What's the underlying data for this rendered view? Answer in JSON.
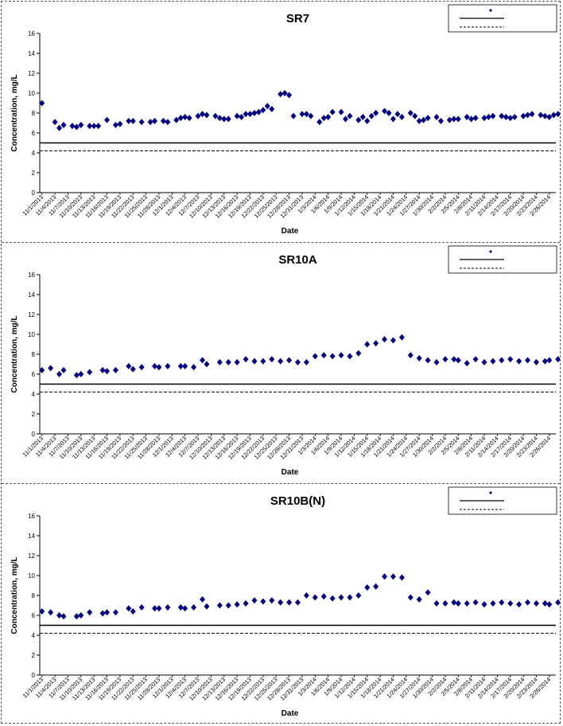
{
  "chart_data": [
    {
      "type": "scatter",
      "title": "SR7",
      "xlabel": "Date",
      "ylabel": "Concentration, mg/L",
      "ylim": [
        0,
        16
      ],
      "yticks": [
        "0",
        "2",
        "4",
        "6",
        "8",
        "10",
        "12",
        "14",
        "16"
      ],
      "x_tick_labels": [
        "11/1/2013",
        "11/4/2013",
        "11/7/2013",
        "11/10/2013",
        "11/13/2013",
        "11/16/2013",
        "11/19/2013",
        "11/22/2013",
        "11/25/2013",
        "11/28/2013",
        "12/1/2013",
        "12/4/2013",
        "12/7/2013",
        "12/10/2013",
        "12/13/2013",
        "12/16/2013",
        "12/19/2013",
        "12/22/2013",
        "12/25/2013",
        "12/28/2013",
        "12/31/2013",
        "1/3/2014",
        "1/6/2014",
        "1/9/2014",
        "1/12/2014",
        "1/15/2014",
        "1/18/2014",
        "1/21/2014",
        "1/24/2014",
        "1/27/2014",
        "1/30/2014",
        "2/2/2014",
        "2/5/2014",
        "2/8/2014",
        "2/11/2014",
        "2/14/2014",
        "2/17/2014",
        "2/20/2014",
        "2/23/2014",
        "2/26/2014"
      ],
      "grid": false,
      "legend": "top-right",
      "reference_lines": [
        {
          "style": "solid",
          "value": 5.0
        },
        {
          "style": "dashed",
          "value": 4.2
        }
      ],
      "series": [
        {
          "color": "#000080",
          "marker": "diamond",
          "x": [
            "11/1/2013",
            "11/4/2013",
            "11/5/2013",
            "11/6/2013",
            "11/8/2013",
            "11/9/2013",
            "11/10/2013",
            "11/12/2013",
            "11/13/2013",
            "11/14/2013",
            "11/16/2013",
            "11/18/2013",
            "11/19/2013",
            "11/21/2013",
            "11/22/2013",
            "11/24/2013",
            "11/26/2013",
            "11/27/2013",
            "11/29/2013",
            "11/30/2013",
            "12/2/2013",
            "12/3/2013",
            "12/4/2013",
            "12/5/2013",
            "12/7/2013",
            "12/8/2013",
            "12/9/2013",
            "12/11/2013",
            "12/12/2013",
            "12/13/2013",
            "12/14/2013",
            "12/16/2013",
            "12/17/2013",
            "12/18/2013",
            "12/19/2013",
            "12/20/2013",
            "12/21/2013",
            "12/22/2013",
            "12/23/2013",
            "12/24/2013",
            "12/26/2013",
            "12/27/2013",
            "12/28/2013",
            "12/29/2013",
            "12/31/2013",
            "1/1/2014",
            "1/2/2014",
            "1/4/2014",
            "1/5/2014",
            "1/6/2014",
            "1/7/2014",
            "1/9/2014",
            "1/10/2014",
            "1/11/2014",
            "1/13/2014",
            "1/14/2014",
            "1/15/2014",
            "1/16/2014",
            "1/17/2014",
            "1/19/2014",
            "1/20/2014",
            "1/21/2014",
            "1/22/2014",
            "1/23/2014",
            "1/25/2014",
            "1/26/2014",
            "1/27/2014",
            "1/28/2014",
            "1/29/2014",
            "1/31/2014",
            "2/1/2014",
            "2/3/2014",
            "2/4/2014",
            "2/5/2014",
            "2/7/2014",
            "2/8/2014",
            "2/9/2014",
            "2/11/2014",
            "2/12/2014",
            "2/13/2014",
            "2/15/2014",
            "2/16/2014",
            "2/17/2014",
            "2/18/2014",
            "2/20/2014",
            "2/21/2014",
            "2/22/2014",
            "2/24/2014",
            "2/25/2014",
            "2/26/2014",
            "2/27/2014",
            "2/28/2014",
            "3/1/2014",
            "3/2/2014",
            "3/3/2014"
          ],
          "y": [
            9.0,
            7.1,
            6.5,
            6.8,
            6.7,
            6.6,
            6.8,
            6.7,
            6.7,
            6.7,
            7.3,
            6.8,
            6.9,
            7.2,
            7.2,
            7.1,
            7.1,
            7.2,
            7.2,
            7.1,
            7.3,
            7.5,
            7.6,
            7.5,
            7.7,
            7.9,
            7.8,
            7.7,
            7.5,
            7.4,
            7.4,
            7.7,
            7.6,
            7.9,
            7.9,
            8.0,
            8.1,
            8.3,
            8.7,
            8.4,
            9.9,
            10.0,
            9.8,
            7.7,
            7.9,
            7.9,
            7.7,
            7.1,
            7.5,
            7.6,
            8.1,
            8.1,
            7.4,
            7.7,
            7.3,
            7.6,
            7.2,
            7.7,
            8.0,
            8.2,
            8.0,
            7.4,
            7.9,
            7.6,
            8.0,
            7.7,
            7.2,
            7.3,
            7.5,
            7.6,
            7.2,
            7.3,
            7.4,
            7.4,
            7.6,
            7.4,
            7.5,
            7.5,
            7.6,
            7.7,
            7.7,
            7.6,
            7.5,
            7.6,
            7.7,
            7.8,
            7.9,
            7.8,
            7.7,
            7.6,
            7.8,
            7.9,
            7.7,
            8.0,
            8.1
          ]
        }
      ]
    },
    {
      "type": "scatter",
      "title": "SR10A",
      "xlabel": "Date",
      "ylabel": "Concentration, mg/L",
      "ylim": [
        0,
        16
      ],
      "yticks": [
        "0",
        "2",
        "4",
        "6",
        "8",
        "10",
        "12",
        "14",
        "16"
      ],
      "x_tick_labels": [
        "11/1/2013",
        "11/4/2013",
        "11/7/2013",
        "11/10/2013",
        "11/13/2013",
        "11/16/2013",
        "11/19/2013",
        "11/22/2013",
        "11/25/2013",
        "11/28/2013",
        "12/1/2013",
        "12/4/2013",
        "12/7/2013",
        "12/10/2013",
        "12/13/2013",
        "12/16/2013",
        "12/19/2013",
        "12/22/2013",
        "12/25/2013",
        "12/28/2013",
        "12/31/2013",
        "1/3/2014",
        "1/6/2014",
        "1/9/2014",
        "1/12/2014",
        "1/15/2014",
        "1/18/2014",
        "1/21/2014",
        "1/24/2014",
        "1/27/2014",
        "1/30/2014",
        "2/2/2014",
        "2/5/2014",
        "2/8/2014",
        "2/11/2014",
        "2/14/2014",
        "2/17/2014",
        "2/20/2014",
        "2/23/2014",
        "2/26/2014"
      ],
      "grid": false,
      "legend": "top-right",
      "reference_lines": [
        {
          "style": "solid",
          "value": 5.0
        },
        {
          "style": "dashed",
          "value": 4.2
        }
      ],
      "series": [
        {
          "color": "#000080",
          "marker": "diamond",
          "x": [
            "11/1/2013",
            "11/3/2013",
            "11/5/2013",
            "11/6/2013",
            "11/9/2013",
            "11/10/2013",
            "11/12/2013",
            "11/15/2013",
            "11/16/2013",
            "11/18/2013",
            "11/21/2013",
            "11/22/2013",
            "11/24/2013",
            "11/27/2013",
            "11/28/2013",
            "11/30/2013",
            "12/3/2013",
            "12/4/2013",
            "12/6/2013",
            "12/8/2013",
            "12/9/2013",
            "12/12/2013",
            "12/14/2013",
            "12/16/2013",
            "12/18/2013",
            "12/20/2013",
            "12/22/2013",
            "12/24/2013",
            "12/26/2013",
            "12/28/2013",
            "12/30/2013",
            "1/1/2014",
            "1/3/2014",
            "1/5/2014",
            "1/7/2014",
            "1/9/2014",
            "1/11/2014",
            "1/13/2014",
            "1/15/2014",
            "1/17/2014",
            "1/19/2014",
            "1/21/2014",
            "1/23/2014",
            "1/25/2014",
            "1/27/2014",
            "1/29/2014",
            "1/31/2014",
            "2/2/2014",
            "2/4/2014",
            "2/5/2014",
            "2/7/2014",
            "2/9/2014",
            "2/11/2014",
            "2/13/2014",
            "2/15/2014",
            "2/17/2014",
            "2/19/2014",
            "2/21/2014",
            "2/23/2014",
            "2/25/2014",
            "2/26/2014",
            "2/28/2014"
          ],
          "y": [
            6.4,
            6.6,
            6.0,
            6.4,
            5.9,
            6.0,
            6.2,
            6.4,
            6.3,
            6.4,
            6.8,
            6.5,
            6.7,
            6.8,
            6.7,
            6.8,
            6.8,
            6.8,
            6.7,
            7.4,
            7.0,
            7.2,
            7.2,
            7.2,
            7.5,
            7.3,
            7.3,
            7.5,
            7.3,
            7.4,
            7.2,
            7.2,
            7.8,
            7.9,
            7.8,
            7.9,
            7.8,
            8.1,
            9.0,
            9.1,
            9.5,
            9.4,
            9.7,
            7.9,
            7.6,
            7.4,
            7.2,
            7.5,
            7.5,
            7.4,
            7.1,
            7.5,
            7.2,
            7.3,
            7.4,
            7.5,
            7.3,
            7.4,
            7.2,
            7.3,
            7.4,
            7.5
          ]
        }
      ]
    },
    {
      "type": "scatter",
      "title": "SR10B(N)",
      "xlabel": "Date",
      "ylabel": "Concentration, mg/L",
      "ylim": [
        0,
        16
      ],
      "yticks": [
        "0",
        "2",
        "4",
        "6",
        "8",
        "10",
        "12",
        "14",
        "16"
      ],
      "x_tick_labels": [
        "11/1/2013",
        "11/4/2013",
        "11/7/2013",
        "11/10/2013",
        "11/13/2013",
        "11/16/2013",
        "11/19/2013",
        "11/22/2013",
        "11/25/2013",
        "11/28/2013",
        "12/1/2013",
        "12/4/2013",
        "12/7/2013",
        "12/10/2013",
        "12/13/2013",
        "12/16/2013",
        "12/19/2013",
        "12/22/2013",
        "12/25/2013",
        "12/28/2013",
        "12/31/2013",
        "1/3/2014",
        "1/6/2014",
        "1/9/2014",
        "1/12/2014",
        "1/15/2014",
        "1/18/2014",
        "1/21/2014",
        "1/24/2014",
        "1/27/2014",
        "1/30/2014",
        "2/2/2014",
        "2/5/2014",
        "2/8/2014",
        "2/11/2014",
        "2/14/2014",
        "2/17/2014",
        "2/20/2014",
        "2/23/2014",
        "2/26/2014"
      ],
      "grid": false,
      "legend": "top-right",
      "reference_lines": [
        {
          "style": "solid",
          "value": 5.0
        },
        {
          "style": "dashed",
          "value": 4.2
        }
      ],
      "series": [
        {
          "color": "#000080",
          "marker": "diamond",
          "x": [
            "11/1/2013",
            "11/3/2013",
            "11/5/2013",
            "11/6/2013",
            "11/9/2013",
            "11/10/2013",
            "11/12/2013",
            "11/15/2013",
            "11/16/2013",
            "11/18/2013",
            "11/21/2013",
            "11/22/2013",
            "11/24/2013",
            "11/27/2013",
            "11/28/2013",
            "11/30/2013",
            "12/3/2013",
            "12/4/2013",
            "12/6/2013",
            "12/8/2013",
            "12/9/2013",
            "12/12/2013",
            "12/14/2013",
            "12/16/2013",
            "12/18/2013",
            "12/20/2013",
            "12/22/2013",
            "12/24/2013",
            "12/26/2013",
            "12/28/2013",
            "12/30/2013",
            "1/1/2014",
            "1/3/2014",
            "1/5/2014",
            "1/7/2014",
            "1/9/2014",
            "1/11/2014",
            "1/13/2014",
            "1/15/2014",
            "1/17/2014",
            "1/19/2014",
            "1/21/2014",
            "1/23/2014",
            "1/25/2014",
            "1/27/2014",
            "1/29/2014",
            "1/31/2014",
            "2/2/2014",
            "2/4/2014",
            "2/5/2014",
            "2/7/2014",
            "2/9/2014",
            "2/11/2014",
            "2/13/2014",
            "2/15/2014",
            "2/17/2014",
            "2/19/2014",
            "2/21/2014",
            "2/23/2014",
            "2/25/2014",
            "2/26/2014",
            "2/28/2014"
          ],
          "y": [
            6.4,
            6.3,
            6.0,
            5.9,
            5.9,
            6.0,
            6.3,
            6.2,
            6.3,
            6.3,
            6.7,
            6.4,
            6.8,
            6.7,
            6.7,
            6.8,
            6.8,
            6.7,
            6.8,
            7.6,
            6.9,
            7.0,
            7.0,
            7.1,
            7.2,
            7.5,
            7.4,
            7.5,
            7.3,
            7.3,
            7.3,
            8.0,
            7.8,
            7.9,
            7.7,
            7.8,
            7.8,
            8.0,
            8.8,
            8.9,
            9.9,
            9.9,
            9.8,
            7.8,
            7.6,
            8.3,
            7.2,
            7.2,
            7.3,
            7.2,
            7.2,
            7.3,
            7.1,
            7.2,
            7.3,
            7.2,
            7.1,
            7.3,
            7.2,
            7.2,
            7.1,
            7.3
          ]
        }
      ]
    }
  ]
}
